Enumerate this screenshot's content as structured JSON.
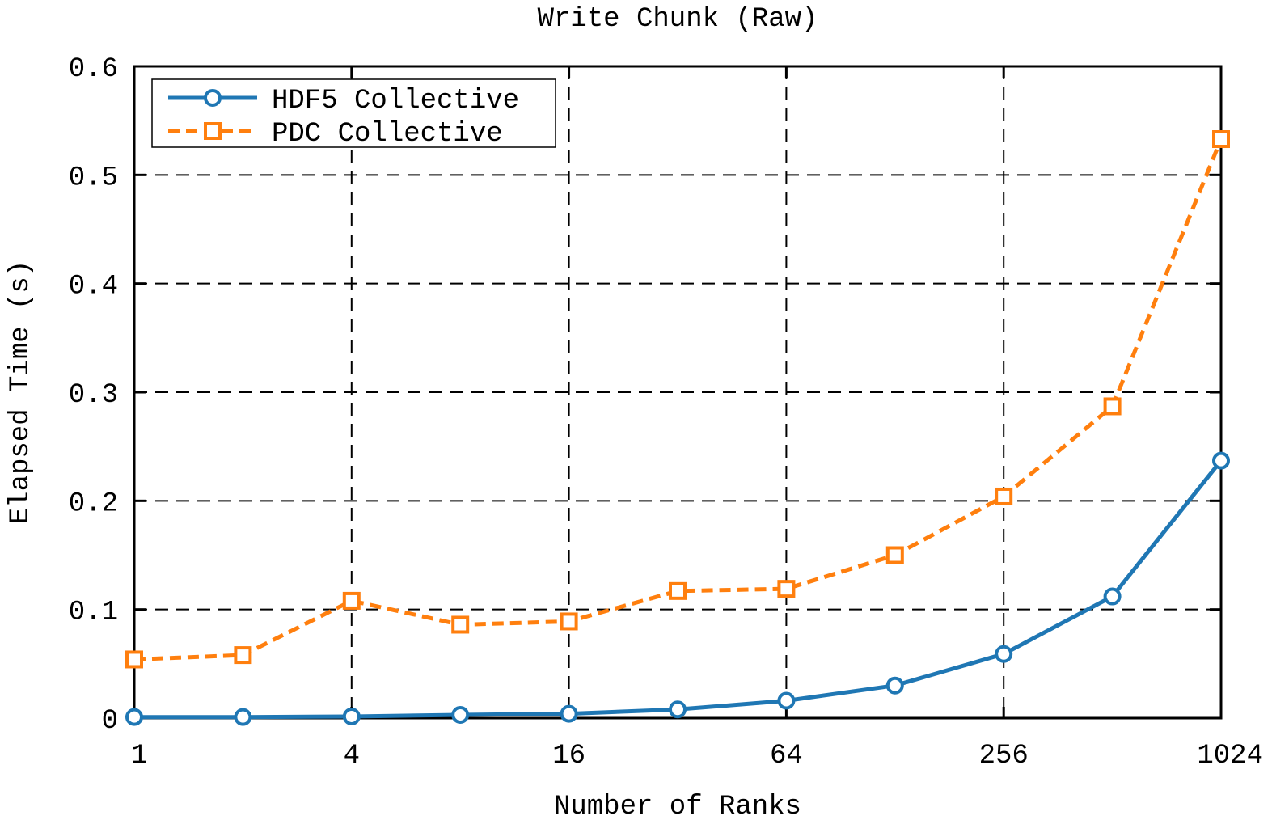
{
  "chart_data": {
    "type": "line",
    "title": "Write Chunk (Raw)",
    "xlabel": "Number of Ranks",
    "ylabel": "Elapsed Time (s)",
    "x_scale": "log2",
    "x": [
      1,
      2,
      4,
      8,
      16,
      32,
      64,
      128,
      256,
      512,
      1024
    ],
    "x_ticks": [
      1,
      4,
      16,
      64,
      256,
      1024
    ],
    "x_tick_labels": [
      "1",
      "4",
      "16",
      "64",
      "256",
      "1024"
    ],
    "xlim": [
      1,
      1024
    ],
    "ylim": [
      0,
      0.6
    ],
    "y_ticks": [
      0,
      0.1,
      0.2,
      0.3,
      0.4,
      0.5,
      0.6
    ],
    "y_tick_labels": [
      "0",
      "0.1",
      "0.2",
      "0.3",
      "0.4",
      "0.5",
      "0.6"
    ],
    "grid": true,
    "legend_position": "top-left",
    "series": [
      {
        "name": "HDF5 Collective",
        "color": "#1f77b4",
        "marker": "circle",
        "line_style": "solid",
        "values": [
          0.001,
          0.001,
          0.0015,
          0.003,
          0.004,
          0.008,
          0.016,
          0.03,
          0.059,
          0.112,
          0.237
        ]
      },
      {
        "name": "PDC Collective",
        "color": "#ff7f0e",
        "marker": "square",
        "line_style": "dashed",
        "values": [
          0.054,
          0.058,
          0.108,
          0.086,
          0.089,
          0.117,
          0.119,
          0.15,
          0.204,
          0.287,
          0.533
        ]
      }
    ]
  }
}
